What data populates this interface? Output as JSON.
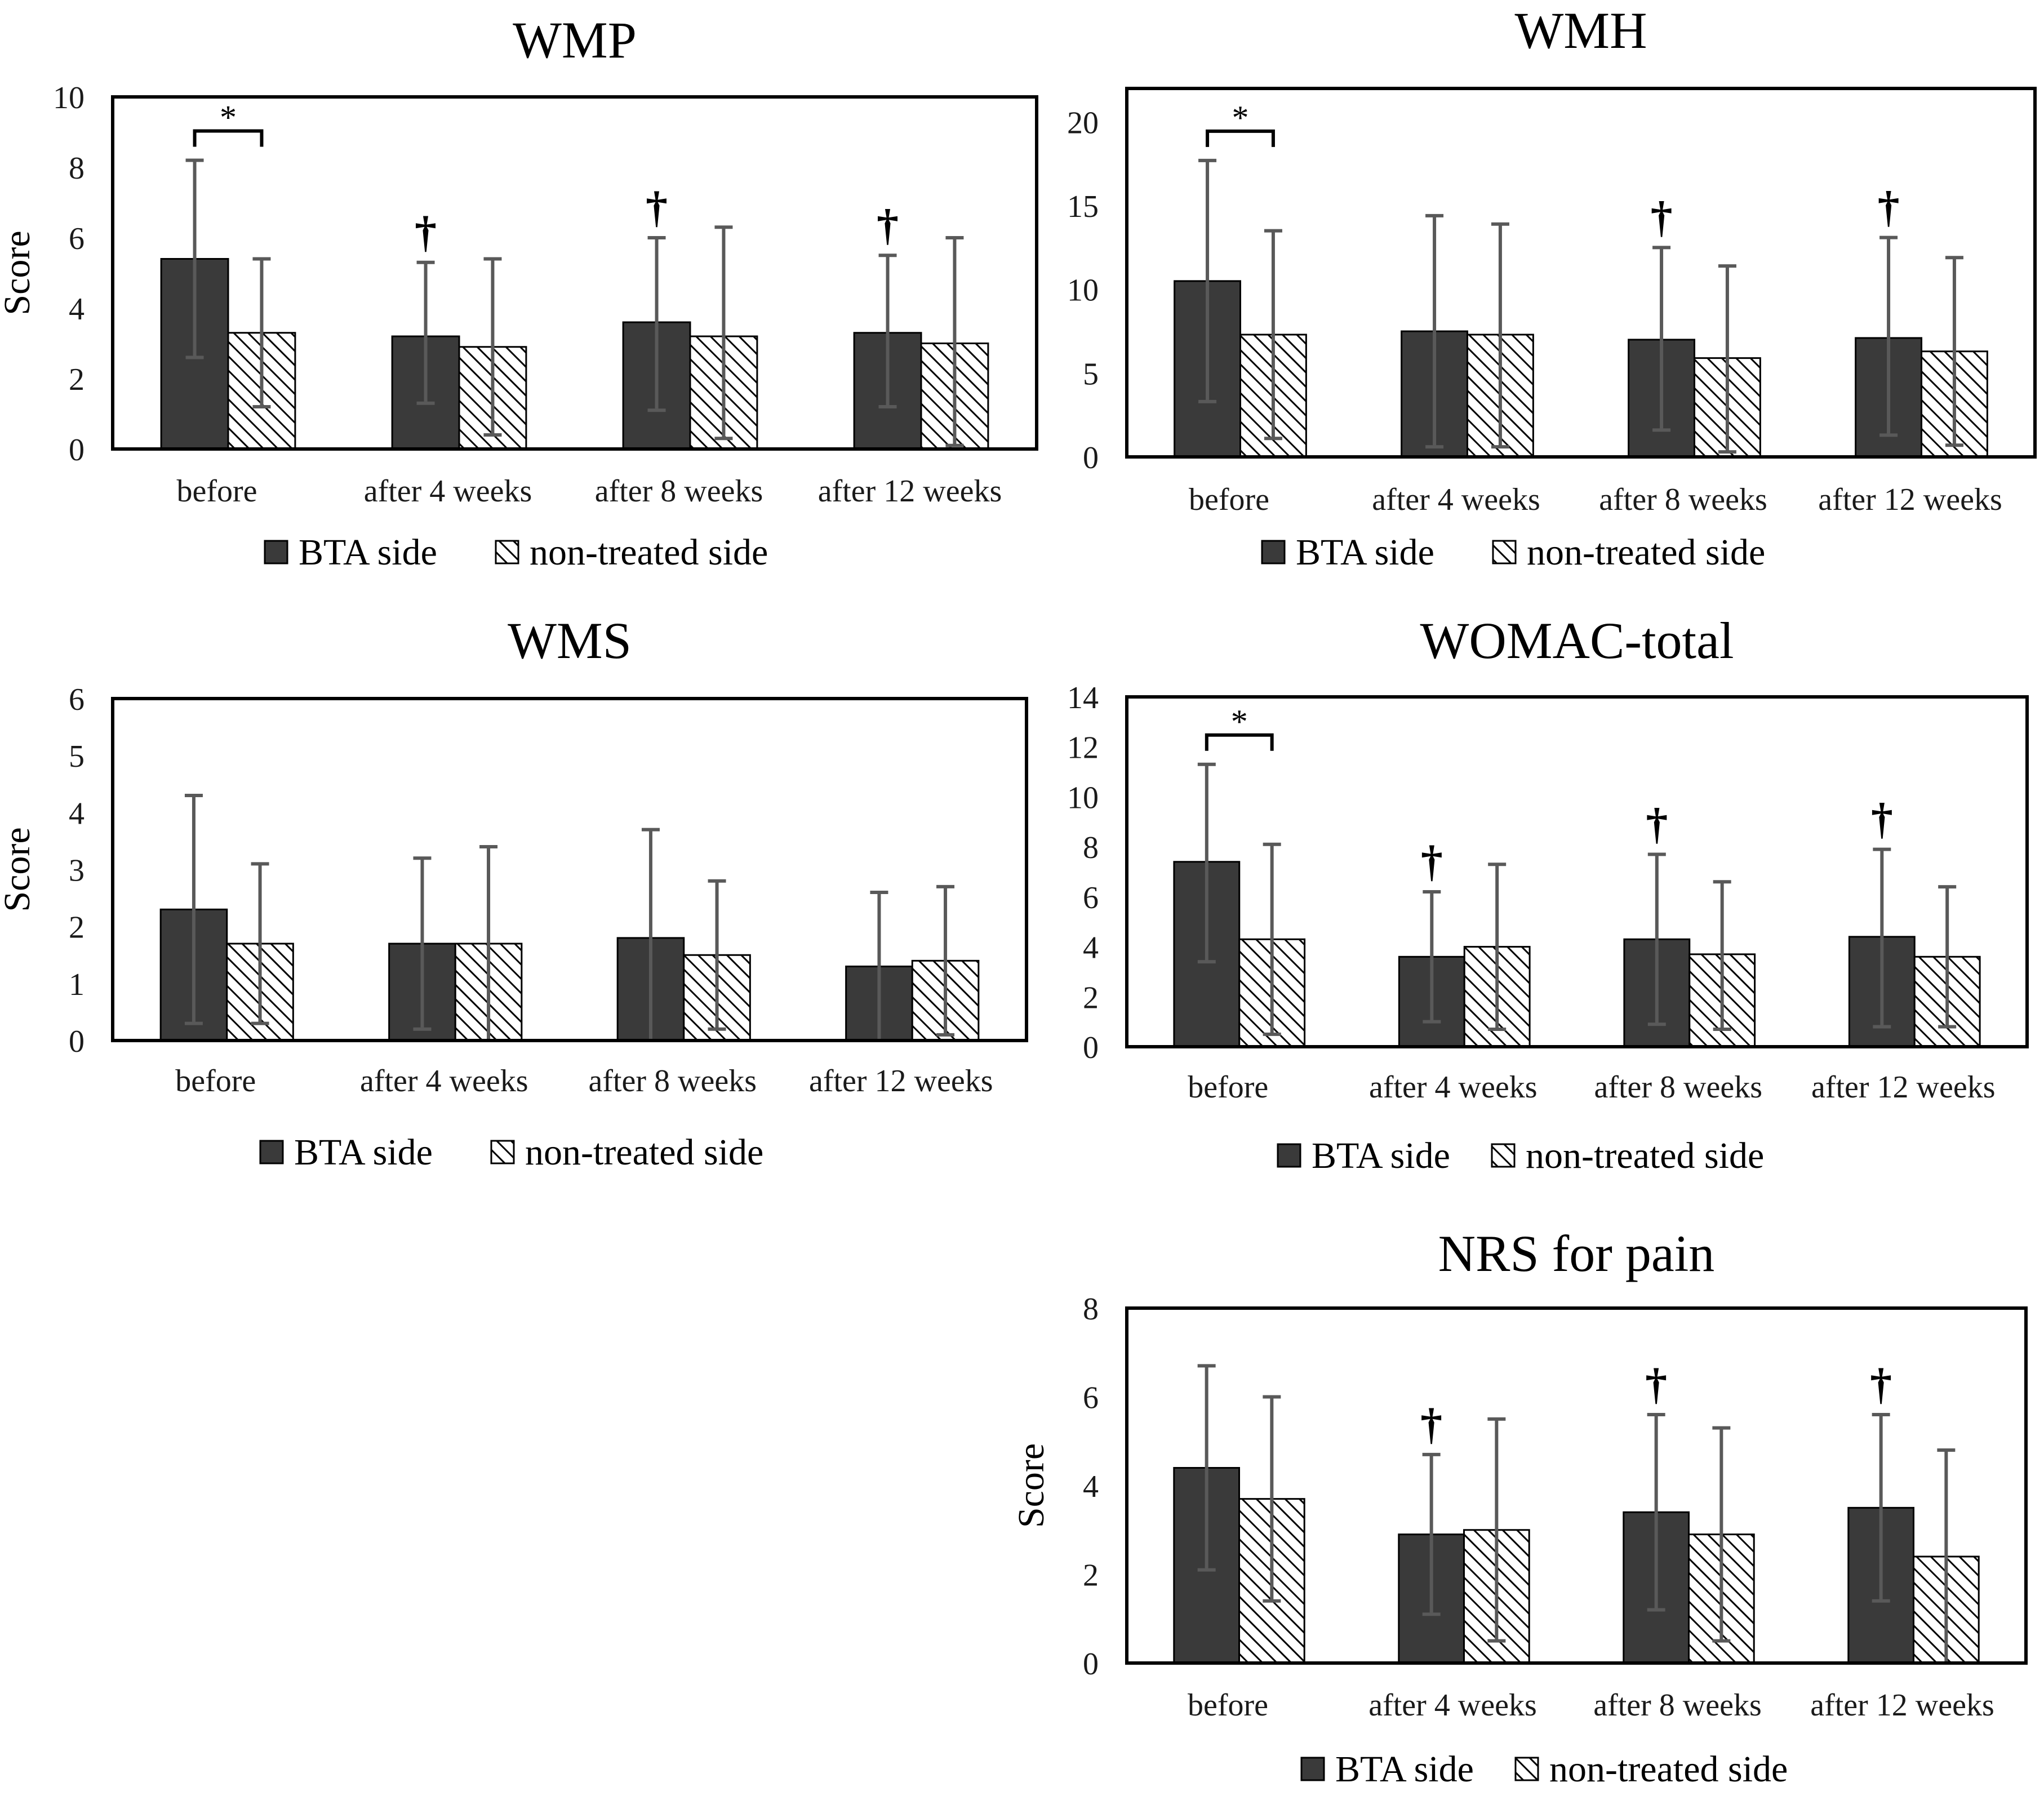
{
  "colors": {
    "bta": "#3a3a3a",
    "error_bar": "#595959",
    "frame": "#000000",
    "hatch": "#000000"
  },
  "chart_data": [
    {
      "id": "wmp",
      "type": "bar",
      "title": "WMP",
      "ylabel": "Score",
      "categories": [
        "before",
        "after 4 weeks",
        "after 8 weeks",
        "after 12 weeks"
      ],
      "ylim": [
        0,
        10
      ],
      "yticks": [
        "0",
        "2",
        "4",
        "6",
        "8",
        "10"
      ],
      "series": [
        {
          "name": "BTA side",
          "values": [
            5.4,
            3.2,
            3.6,
            3.3
          ],
          "err_low": [
            2.6,
            1.3,
            1.1,
            1.2
          ],
          "err_high": [
            8.2,
            5.3,
            6.0,
            5.5
          ]
        },
        {
          "name": "non-treated side",
          "values": [
            3.3,
            2.9,
            3.2,
            3.0
          ],
          "err_low": [
            1.2,
            0.4,
            0.3,
            0.1
          ],
          "err_high": [
            5.4,
            5.4,
            6.3,
            6.0
          ]
        }
      ],
      "legend": [
        "BTA side",
        "non-treated side"
      ],
      "significance": {
        "bracket": {
          "category": "before",
          "label": "*"
        },
        "markers": [
          {
            "category": "after 4 weeks",
            "label": "†"
          },
          {
            "category": "after 8 weeks",
            "label": "†"
          },
          {
            "category": "after 12 weeks",
            "label": "†"
          }
        ]
      }
    },
    {
      "id": "wmh",
      "type": "bar",
      "title": "WMH",
      "ylabel": "",
      "categories": [
        "before",
        "after 4 weeks",
        "after 8 weeks",
        "after 12 weeks"
      ],
      "ylim": [
        0,
        22
      ],
      "yticks": [
        "0",
        "5",
        "10",
        "15",
        "20"
      ],
      "series": [
        {
          "name": "BTA side",
          "values": [
            10.5,
            7.5,
            7.0,
            7.1
          ],
          "err_low": [
            3.3,
            0.6,
            1.6,
            1.3
          ],
          "err_high": [
            17.7,
            14.4,
            12.5,
            13.1
          ]
        },
        {
          "name": "non-treated side",
          "values": [
            7.3,
            7.3,
            5.9,
            6.3
          ],
          "err_low": [
            1.1,
            0.6,
            0.3,
            0.7
          ],
          "err_high": [
            13.5,
            13.9,
            11.4,
            11.9
          ]
        }
      ],
      "legend": [
        "BTA side",
        "non-treated side"
      ],
      "significance": {
        "bracket": {
          "category": "before",
          "label": "*"
        },
        "markers": [
          {
            "category": "after 8 weeks",
            "label": "†"
          },
          {
            "category": "after 12 weeks",
            "label": "†"
          }
        ]
      }
    },
    {
      "id": "wms",
      "type": "bar",
      "title": "WMS",
      "ylabel": "Score",
      "categories": [
        "before",
        "after 4 weeks",
        "after 8 weeks",
        "after 12 weeks"
      ],
      "ylim": [
        0,
        6
      ],
      "yticks": [
        "0",
        "1",
        "2",
        "3",
        "4",
        "5",
        "6"
      ],
      "series": [
        {
          "name": "BTA side",
          "values": [
            2.3,
            1.7,
            1.8,
            1.3
          ],
          "err_low": [
            0.3,
            0.2,
            0.0,
            0.0
          ],
          "err_high": [
            4.3,
            3.2,
            3.7,
            2.6
          ]
        },
        {
          "name": "non-treated side",
          "values": [
            1.7,
            1.7,
            1.5,
            1.4
          ],
          "err_low": [
            0.3,
            0.0,
            0.2,
            0.1
          ],
          "err_high": [
            3.1,
            3.4,
            2.8,
            2.7
          ]
        }
      ],
      "legend": [
        "BTA side",
        "non-treated side"
      ],
      "significance": null
    },
    {
      "id": "womac",
      "type": "bar",
      "title": "WOMAC-total",
      "ylabel": "",
      "categories": [
        "before",
        "after 4 weeks",
        "after 8 weeks",
        "after 12 weeks"
      ],
      "ylim": [
        0,
        14
      ],
      "yticks": [
        "0",
        "2",
        "4",
        "6",
        "8",
        "10",
        "12",
        "14"
      ],
      "series": [
        {
          "name": "BTA side",
          "values": [
            7.4,
            3.6,
            4.3,
            4.4
          ],
          "err_low": [
            3.4,
            1.0,
            0.9,
            0.8
          ],
          "err_high": [
            11.3,
            6.2,
            7.7,
            7.9
          ]
        },
        {
          "name": "non-treated side",
          "values": [
            4.3,
            4.0,
            3.7,
            3.6
          ],
          "err_low": [
            0.5,
            0.7,
            0.7,
            0.8
          ],
          "err_high": [
            8.1,
            7.3,
            6.6,
            6.4
          ]
        }
      ],
      "legend": [
        "BTA side",
        "non-treated side"
      ],
      "significance": {
        "bracket": {
          "category": "before",
          "label": "*"
        },
        "markers": [
          {
            "category": "after 4 weeks",
            "label": "†"
          },
          {
            "category": "after 8 weeks",
            "label": "†"
          },
          {
            "category": "after 12 weeks",
            "label": "†"
          }
        ]
      }
    },
    {
      "id": "nrs",
      "type": "bar",
      "title": "NRS for pain",
      "ylabel": "Score",
      "categories": [
        "before",
        "after 4 weeks",
        "after 8 weeks",
        "after 12 weeks"
      ],
      "ylim": [
        0,
        8
      ],
      "yticks": [
        "0",
        "2",
        "4",
        "6",
        "8"
      ],
      "series": [
        {
          "name": "BTA side",
          "values": [
            4.4,
            2.9,
            3.4,
            3.5
          ],
          "err_low": [
            2.1,
            1.1,
            1.2,
            1.4
          ],
          "err_high": [
            6.7,
            4.7,
            5.6,
            5.6
          ]
        },
        {
          "name": "non-treated side",
          "values": [
            3.7,
            3.0,
            2.9,
            2.4
          ],
          "err_low": [
            1.4,
            0.5,
            0.5,
            0.0
          ],
          "err_high": [
            6.0,
            5.5,
            5.3,
            4.8
          ]
        }
      ],
      "legend": [
        "BTA side",
        "non-treated side"
      ],
      "significance": {
        "bracket": null,
        "markers": [
          {
            "category": "after 4 weeks",
            "label": "†"
          },
          {
            "category": "after 8 weeks",
            "label": "†"
          },
          {
            "category": "after 12 weeks",
            "label": "†"
          }
        ]
      }
    }
  ]
}
